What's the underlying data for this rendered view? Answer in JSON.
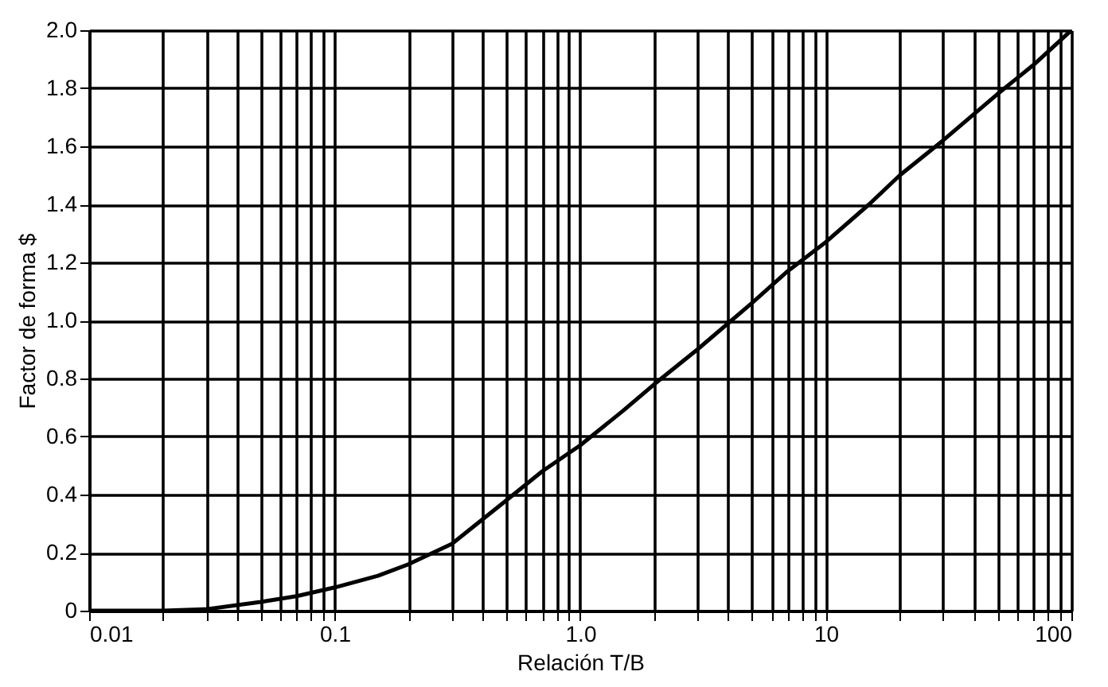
{
  "chart_data": {
    "type": "line",
    "xlabel": "Relación T/B",
    "ylabel": "Factor de forma $",
    "log": "x",
    "x": [
      0.01,
      0.02,
      0.03,
      0.05,
      0.07,
      0.1,
      0.15,
      0.2,
      0.3,
      0.5,
      0.7,
      1.0,
      1.5,
      2,
      3,
      5,
      7,
      10,
      15,
      20,
      30,
      50,
      70,
      100
    ],
    "series": [
      {
        "color": "#000000",
        "values": [
          0,
          0,
          0.005,
          0.03,
          0.05,
          0.08,
          0.12,
          0.16,
          0.23,
          0.38,
          0.48,
          0.57,
          0.69,
          0.78,
          0.9,
          1.06,
          1.17,
          1.27,
          1.4,
          1.5,
          1.62,
          1.78,
          1.88,
          2.0
        ]
      }
    ],
    "xlim": [
      0.01,
      100
    ],
    "ylim": [
      0,
      2.0
    ],
    "xticks": [
      0.01,
      {
        "value": 0.02,
        "label": null
      },
      {
        "value": 0.03,
        "label": null
      },
      {
        "value": 0.04,
        "label": null
      },
      {
        "value": 0.05,
        "label": null
      },
      {
        "value": 0.06,
        "label": null
      },
      {
        "value": 0.07,
        "label": null
      },
      {
        "value": 0.08,
        "label": null
      },
      {
        "value": 0.09,
        "label": null
      },
      0.1,
      {
        "value": 0.2,
        "label": null
      },
      {
        "value": 0.3,
        "label": null
      },
      {
        "value": 0.4,
        "label": null
      },
      {
        "value": 0.5,
        "label": null
      },
      {
        "value": 0.6,
        "label": null
      },
      {
        "value": 0.7,
        "label": null
      },
      {
        "value": 0.8,
        "label": null
      },
      {
        "value": 0.9,
        "label": null
      },
      {
        "value": 1,
        "label": "1.0"
      },
      {
        "value": 2,
        "label": null
      },
      {
        "value": 3,
        "label": null
      },
      {
        "value": 4,
        "label": null
      },
      {
        "value": 5,
        "label": null
      },
      {
        "value": 6,
        "label": null
      },
      {
        "value": 7,
        "label": null
      },
      {
        "value": 8,
        "label": null
      },
      {
        "value": 9,
        "label": null
      },
      10,
      {
        "value": 20,
        "label": null
      },
      {
        "value": 30,
        "label": null
      },
      {
        "value": 40,
        "label": null
      },
      {
        "value": 50,
        "label": null
      },
      {
        "value": 60,
        "label": null
      },
      {
        "value": 70,
        "label": null
      },
      {
        "value": 80,
        "label": null
      },
      {
        "value": 90,
        "label": null
      },
      100
    ],
    "yticks": [
      0,
      0.2,
      0.4,
      0.6,
      0.8,
      {
        "value": 1.0,
        "label": "1.0"
      },
      1.2,
      1.4,
      1.6,
      1.8,
      {
        "value": 2.0,
        "label": "2.0"
      }
    ],
    "grid": true,
    "marker": "none",
    "line_style": "solid"
  }
}
